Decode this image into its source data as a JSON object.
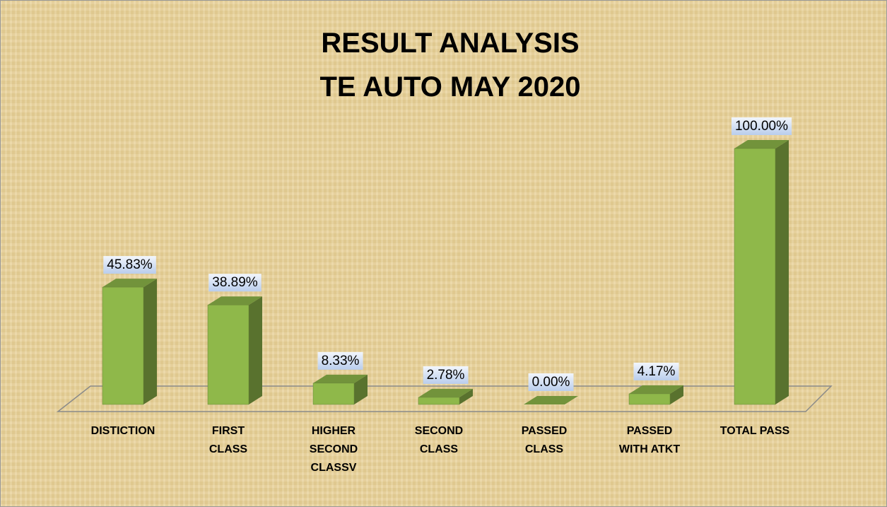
{
  "chart_data": {
    "type": "bar3d",
    "title": [
      "RESULT ANALYSIS",
      "TE AUTO MAY 2020"
    ],
    "categories": [
      "DISTICTION",
      "FIRST CLASS",
      "HIGHER SECOND CLASSV",
      "SECOND CLASS",
      "PASSED CLASS",
      "PASSED WITH ATKT",
      "TOTAL PASS"
    ],
    "values": [
      45.83,
      38.89,
      8.33,
      2.78,
      0,
      4.17,
      100
    ],
    "value_labels": [
      "45.83%",
      "38.89%",
      "8.33%",
      "2.78%",
      "0.00%",
      "4.17%",
      "100.00%"
    ],
    "color": "#8fb84a",
    "ylim": [
      0,
      100
    ]
  }
}
